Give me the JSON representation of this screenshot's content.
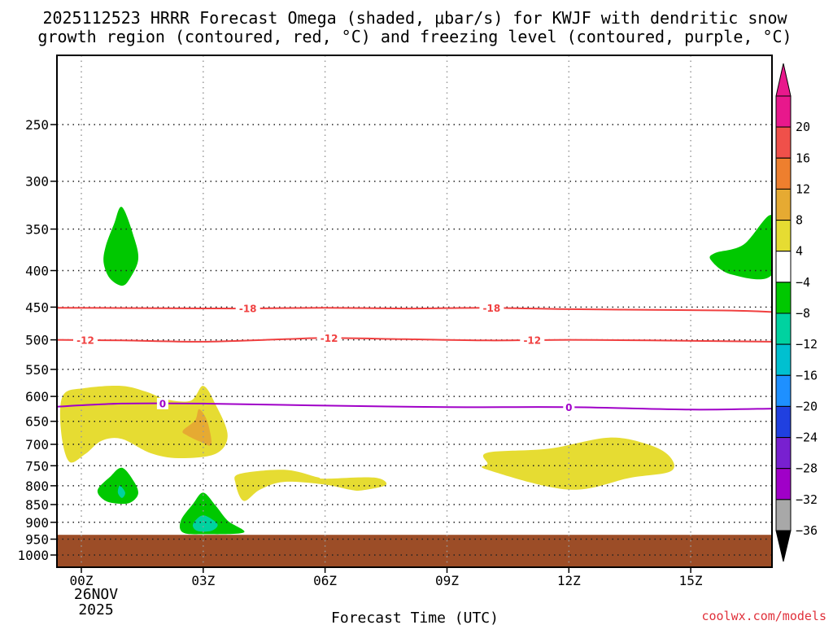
{
  "chart_data": {
    "type": "heatmap",
    "title_line1": "2025112523 HRRR Forecast Omega (shaded, μbar/s) for KWJF with dendritic snow",
    "title_line2": "growth region (contoured, red, °C) and freezing level (contoured, purple, °C)",
    "xlabel": "Forecast Time (UTC)",
    "credit": "coolwx.com/models",
    "x_ticks": [
      {
        "hour": 0,
        "label": "00Z"
      },
      {
        "hour": 3,
        "label": "03Z"
      },
      {
        "hour": 6,
        "label": "06Z"
      },
      {
        "hour": 9,
        "label": "09Z"
      },
      {
        "hour": 12,
        "label": "12Z"
      },
      {
        "hour": 15,
        "label": "15Z"
      }
    ],
    "date_label_line1": "26NOV",
    "date_label_line2": "2025",
    "x_range_hours": [
      -0.6,
      17
    ],
    "y_ticks": [
      {
        "p": 250,
        "label": "250"
      },
      {
        "p": 300,
        "label": "300"
      },
      {
        "p": 350,
        "label": "350"
      },
      {
        "p": 400,
        "label": "400"
      },
      {
        "p": 450,
        "label": "450"
      },
      {
        "p": 500,
        "label": "500"
      },
      {
        "p": 550,
        "label": "550"
      },
      {
        "p": 600,
        "label": "600"
      },
      {
        "p": 650,
        "label": "650"
      },
      {
        "p": 700,
        "label": "700"
      },
      {
        "p": 750,
        "label": "750"
      },
      {
        "p": 800,
        "label": "800"
      },
      {
        "p": 850,
        "label": "850"
      },
      {
        "p": 900,
        "label": "900"
      },
      {
        "p": 950,
        "label": "950"
      },
      {
        "p": 1000,
        "label": "1000"
      }
    ],
    "y_range_hpa": [
      200,
      1040
    ],
    "y_scale": "log-pressure",
    "ground_hpa": 937,
    "ground_color": "#9c4d27",
    "contours": [
      {
        "name": "dgz-minus-18",
        "value": -18,
        "label": "-18",
        "color": "#f04040",
        "points": [
          [
            -0.6,
            451
          ],
          [
            2,
            451.5
          ],
          [
            4,
            452
          ],
          [
            6,
            451
          ],
          [
            8,
            452
          ],
          [
            10,
            451
          ],
          [
            12,
            453
          ],
          [
            14,
            454
          ],
          [
            16,
            455
          ],
          [
            17,
            457
          ]
        ],
        "label_hours": [
          4.1,
          10.1
        ]
      },
      {
        "name": "dgz-minus-12",
        "value": -12,
        "label": "-12",
        "color": "#f04040",
        "points": [
          [
            -0.6,
            500
          ],
          [
            1,
            501
          ],
          [
            3,
            503
          ],
          [
            5,
            499
          ],
          [
            6,
            497
          ],
          [
            8,
            499
          ],
          [
            10,
            501
          ],
          [
            12,
            500
          ],
          [
            14,
            501
          ],
          [
            17,
            503
          ]
        ],
        "label_hours": [
          0.1,
          6.1,
          11.1
        ]
      },
      {
        "name": "freezing-level",
        "value": 0,
        "label": "0",
        "color": "#a000c8",
        "points": [
          [
            -0.6,
            620
          ],
          [
            1,
            614
          ],
          [
            3,
            614
          ],
          [
            6,
            618
          ],
          [
            9,
            621
          ],
          [
            12,
            621
          ],
          [
            15,
            626
          ],
          [
            17,
            624
          ]
        ],
        "label_hours": [
          2.0,
          12.0
        ]
      }
    ],
    "shaded_regions": [
      {
        "name": "omega-pos-4-8-a",
        "range": "4 to 8",
        "color": "#e6dc32",
        "points": [
          [
            -0.45,
            598
          ],
          [
            0.1,
            584
          ],
          [
            1,
            580
          ],
          [
            1.6,
            591
          ],
          [
            2.1,
            606
          ],
          [
            2.7,
            608
          ],
          [
            3,
            580
          ],
          [
            3.3,
            615
          ],
          [
            3.6,
            680
          ],
          [
            3.3,
            722
          ],
          [
            2.4,
            732
          ],
          [
            1.7,
            720
          ],
          [
            1,
            688
          ],
          [
            0.5,
            692
          ],
          [
            0.1,
            722
          ],
          [
            -0.3,
            740
          ],
          [
            -0.5,
            670
          ]
        ]
      },
      {
        "name": "omega-pos-4-8-b",
        "range": "4 to 8",
        "color": "#e6dc32",
        "points": [
          [
            3.9,
            770
          ],
          [
            5,
            760
          ],
          [
            5.8,
            778
          ],
          [
            6,
            782
          ],
          [
            7.2,
            779
          ],
          [
            7.5,
            798
          ],
          [
            6.9,
            812
          ],
          [
            6.6,
            810
          ],
          [
            6,
            797
          ],
          [
            5,
            790
          ],
          [
            4.4,
            810
          ],
          [
            4,
            840
          ],
          [
            3.8,
            795
          ]
        ]
      },
      {
        "name": "omega-pos-4-8-c",
        "range": "4 to 8",
        "color": "#e6dc32",
        "points": [
          [
            10,
            719
          ],
          [
            11.5,
            710
          ],
          [
            13,
            685
          ],
          [
            14,
            702
          ],
          [
            14.5,
            730
          ],
          [
            14.5,
            764
          ],
          [
            13.5,
            780
          ],
          [
            12,
            810
          ],
          [
            10,
            760
          ],
          [
            10,
            745
          ]
        ]
      },
      {
        "name": "omega-pos-8-12",
        "range": "8 to 12",
        "color": "#e6aa32",
        "points": [
          [
            2.9,
            625
          ],
          [
            3.1,
            650
          ],
          [
            3.2,
            700
          ],
          [
            2.95,
            695
          ],
          [
            2.6,
            680
          ],
          [
            2.5,
            670
          ],
          [
            2.8,
            648
          ]
        ]
      },
      {
        "name": "omega-neg-4-8-a",
        "range": "-4 to -8",
        "color": "#00c800",
        "points": [
          [
            1,
            326
          ],
          [
            1.3,
            360
          ],
          [
            1.4,
            386
          ],
          [
            1.2,
            410
          ],
          [
            1,
            420
          ],
          [
            0.7,
            410
          ],
          [
            0.55,
            390
          ],
          [
            0.6,
            370
          ],
          [
            0.8,
            345
          ]
        ]
      },
      {
        "name": "omega-neg-4-8-b",
        "range": "-4 to -8",
        "color": "#00c800",
        "points": [
          [
            1,
            755
          ],
          [
            1.3,
            790
          ],
          [
            1.4,
            820
          ],
          [
            1.25,
            842
          ],
          [
            1,
            848
          ],
          [
            0.6,
            840
          ],
          [
            0.4,
            812
          ],
          [
            0.7,
            778
          ]
        ]
      },
      {
        "name": "omega-neg-4-8-c",
        "range": "-4 to -8",
        "color": "#00c800",
        "points": [
          [
            3,
            818
          ],
          [
            3.3,
            852
          ],
          [
            3.6,
            895
          ],
          [
            4,
            930
          ],
          [
            3,
            935
          ],
          [
            2.5,
            930
          ],
          [
            2.45,
            895
          ],
          [
            2.75,
            848
          ]
        ]
      },
      {
        "name": "omega-neg-4-8-d",
        "range": "-4 to -8",
        "color": "#00c800",
        "points": [
          [
            17,
            335
          ],
          [
            16.3,
            368
          ],
          [
            15.6,
            378
          ],
          [
            15.5,
            387
          ],
          [
            16,
            405
          ],
          [
            17,
            405
          ]
        ]
      },
      {
        "name": "omega-neg-8-12-a",
        "range": "-8 to -12",
        "color": "#00d2a0",
        "points": [
          [
            0.95,
            800
          ],
          [
            1.08,
            818
          ],
          [
            1,
            832
          ],
          [
            0.9,
            818
          ]
        ]
      },
      {
        "name": "omega-neg-8-12-b",
        "range": "-8 to -12",
        "color": "#00d2a0",
        "points": [
          [
            3,
            880
          ],
          [
            3.35,
            905
          ],
          [
            3.2,
            925
          ],
          [
            2.85,
            925
          ],
          [
            2.75,
            905
          ]
        ]
      }
    ],
    "colorbar": [
      {
        "label": "20",
        "color": "#e8188c"
      },
      {
        "label": "16",
        "color": "#f0504a"
      },
      {
        "label": "12",
        "color": "#ee7f2e"
      },
      {
        "label": "8",
        "color": "#e6aa32"
      },
      {
        "label": "4",
        "color": "#e6dc32"
      },
      {
        "label": "−4",
        "color": "#ffffff"
      },
      {
        "label": "−8",
        "color": "#00c800"
      },
      {
        "label": "−12",
        "color": "#00d2a0"
      },
      {
        "label": "−16",
        "color": "#00c0d0"
      },
      {
        "label": "−20",
        "color": "#1e90ff"
      },
      {
        "label": "−24",
        "color": "#2040e0"
      },
      {
        "label": "−28",
        "color": "#7820d0"
      },
      {
        "label": "−32",
        "color": "#a000c8"
      },
      {
        "label": "−36",
        "color": "#a8a8a8"
      }
    ],
    "colorbar_low_color": "#000000"
  }
}
